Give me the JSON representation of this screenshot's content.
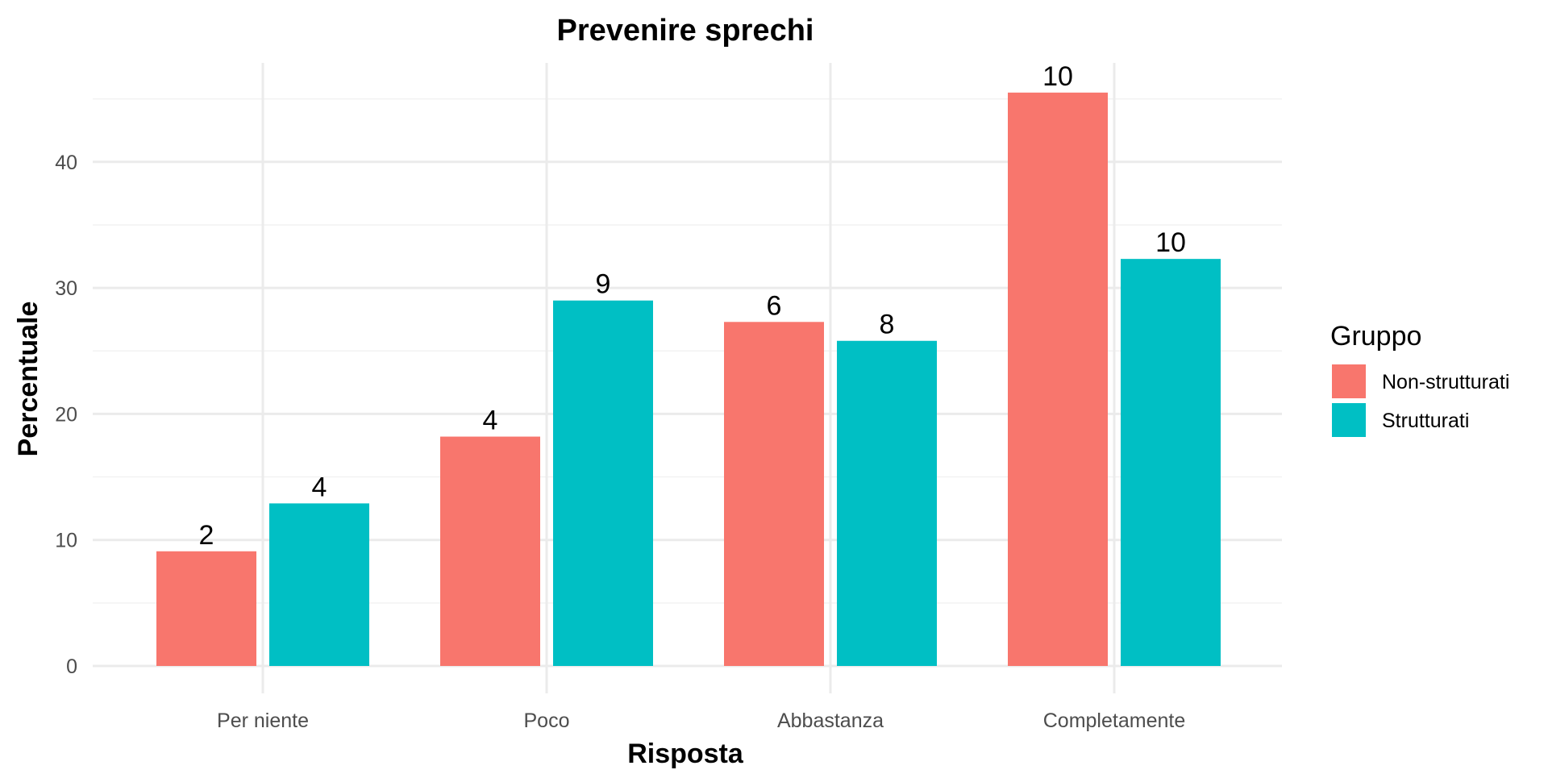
{
  "chart_data": {
    "type": "bar",
    "title": "Prevenire sprechi",
    "xlabel": "Risposta",
    "ylabel": "Percentuale",
    "categories": [
      "Per niente",
      "Poco",
      "Abbastanza",
      "Completamente"
    ],
    "series": [
      {
        "name": "Non-strutturati",
        "color": "#F8766D",
        "values": [
          9.1,
          18.2,
          27.3,
          45.5
        ],
        "labels": [
          "2",
          "4",
          "6",
          "10"
        ]
      },
      {
        "name": "Strutturati",
        "color": "#00BFC4",
        "values": [
          12.9,
          29.0,
          25.8,
          32.3
        ],
        "labels": [
          "4",
          "9",
          "8",
          "10"
        ]
      }
    ],
    "ylim": [
      0,
      47
    ],
    "yticks": [
      0,
      10,
      20,
      30,
      40
    ],
    "grid": true,
    "legend": {
      "title": "Gruppo",
      "position": "right"
    }
  }
}
